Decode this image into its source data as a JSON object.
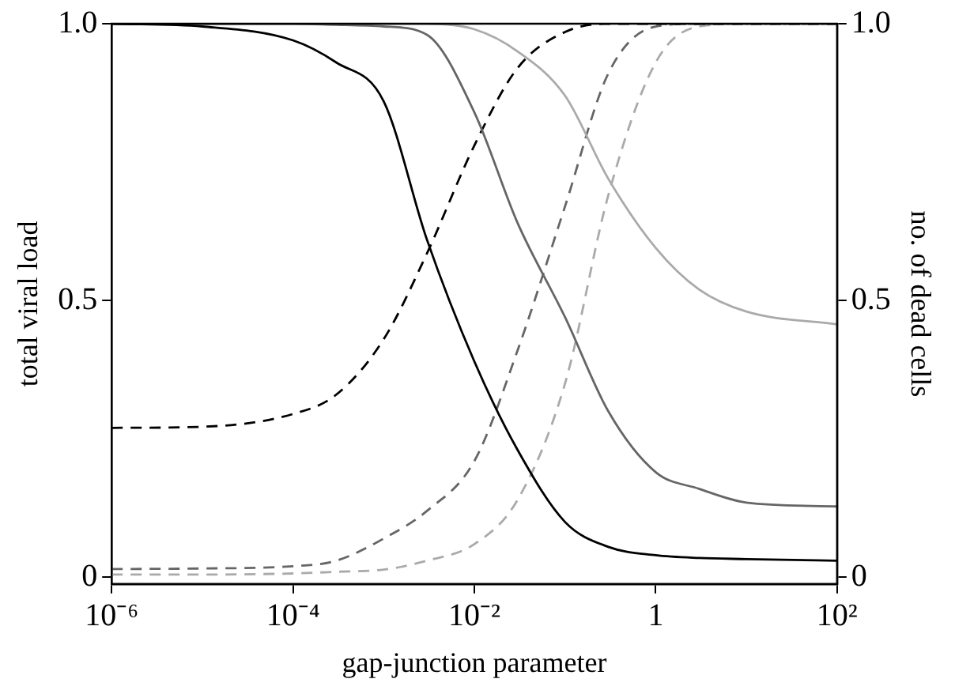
{
  "chart_data": {
    "type": "line",
    "xlabel": "gap-junction parameter",
    "ylabel": "total viral load",
    "y2label": "no. of dead cells",
    "x": [
      1e-06,
      1e-05,
      0.0001,
      0.0003,
      0.001,
      0.003,
      0.01,
      0.03,
      0.1,
      0.3,
      1,
      3,
      10,
      100
    ],
    "series": [
      {
        "color": "#000000",
        "line_style": "solid",
        "values": [
          1,
          0.995,
          0.97,
          0.93,
          0.86,
          0.61,
          0.39,
          0.23,
          0.1,
          0.055,
          0.04,
          0.035,
          0.033,
          0.03
        ]
      },
      {
        "color": "#666666",
        "line_style": "solid",
        "values": [
          1,
          1,
          1,
          0.998,
          0.995,
          0.98,
          0.84,
          0.64,
          0.47,
          0.3,
          0.19,
          0.16,
          0.135,
          0.128
        ]
      },
      {
        "color": "#aaaaaa",
        "line_style": "solid",
        "values": [
          1,
          1,
          1,
          1,
          1,
          1,
          0.99,
          0.95,
          0.87,
          0.72,
          0.595,
          0.52,
          0.48,
          0.457
        ]
      },
      {
        "color": "#000000",
        "line_style": "dashed",
        "values": [
          0.27,
          0.272,
          0.295,
          0.33,
          0.43,
          0.585,
          0.78,
          0.92,
          0.985,
          1,
          1,
          1,
          1,
          1
        ]
      },
      {
        "color": "#666666",
        "line_style": "dashed",
        "values": [
          0.015,
          0.016,
          0.02,
          0.03,
          0.07,
          0.12,
          0.21,
          0.41,
          0.67,
          0.91,
          0.995,
          1,
          1,
          1
        ]
      },
      {
        "color": "#aaaaaa",
        "line_style": "dashed",
        "values": [
          0.005,
          0.005,
          0.007,
          0.01,
          0.014,
          0.03,
          0.06,
          0.14,
          0.35,
          0.69,
          0.93,
          0.995,
          1,
          1
        ]
      }
    ],
    "log": "x",
    "xlim": [
      1e-06,
      100
    ],
    "xticks": [
      {
        "value": 1e-06,
        "label": "10⁻⁶"
      },
      {
        "value": 0.0001,
        "label": "10⁻⁴"
      },
      {
        "value": 0.01,
        "label": "10⁻²"
      },
      1,
      {
        "value": 100,
        "label": "10²"
      }
    ],
    "ylim": [
      -0.012,
      1
    ],
    "yticks": [
      0,
      0.5,
      {
        "value": 1,
        "label": "1.0"
      }
    ],
    "y2lim": [
      -0.012,
      1
    ],
    "y2ticks": [
      0,
      0.5,
      {
        "value": 1,
        "label": "1.0"
      }
    ],
    "grid": false,
    "legend": false,
    "marker": "none"
  }
}
